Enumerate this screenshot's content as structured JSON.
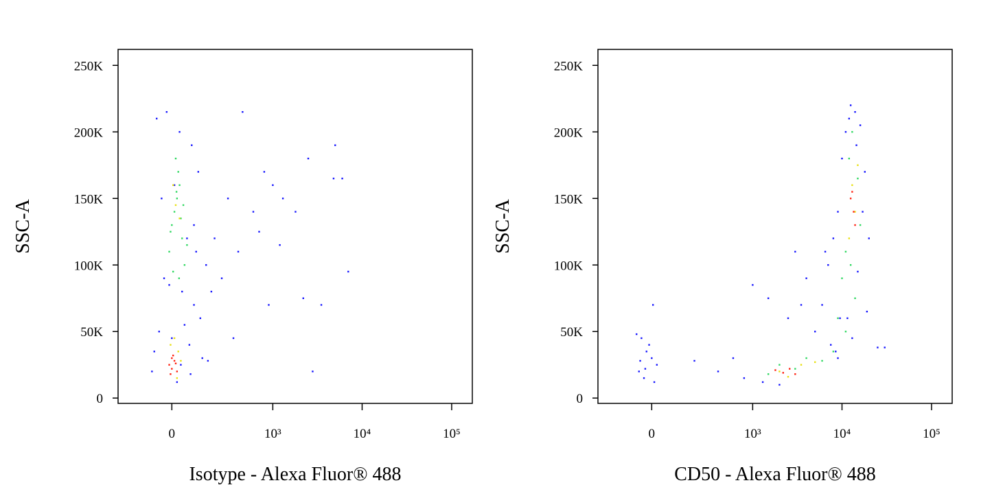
{
  "chart_data": [
    {
      "type": "scatter",
      "xscale": "biexponential",
      "xlabel": "Isotype - Alexa Fluor® 488",
      "ylabel": "SSC-A",
      "xlim": [
        -280,
        170000
      ],
      "ylim": [
        -4000,
        262000
      ],
      "xticks": [
        0,
        {
          "value": 1000,
          "label": "10³"
        },
        {
          "value": 10000,
          "label": "10⁴"
        },
        {
          "value": 100000,
          "label": "10⁵"
        }
      ],
      "yticks": [
        0,
        {
          "value": 50000,
          "label": "50K"
        },
        {
          "value": 100000,
          "label": "100K"
        },
        {
          "value": 150000,
          "label": "150K"
        },
        {
          "value": 200000,
          "label": "200K"
        },
        {
          "value": 250000,
          "label": "250K"
        }
      ],
      "series": [
        {
          "color": "#1414ff",
          "x": [
            -60,
            -20,
            30,
            80,
            110,
            -40,
            10,
            60,
            100,
            -30,
            40,
            90,
            120,
            -50,
            0,
            70,
            150,
            200,
            300,
            450,
            600,
            800,
            1000,
            1300,
            1800,
            2500,
            3500,
            5000,
            7000,
            -80,
            20,
            130,
            50,
            -10,
            90,
            180,
            250,
            400,
            700,
            1200,
            2200,
            4800,
            -70,
            35,
            75,
            160,
            350,
            900,
            2800,
            6000
          ],
          "y": [
            210000,
            215000,
            200000,
            190000,
            170000,
            150000,
            160000,
            120000,
            110000,
            90000,
            80000,
            70000,
            60000,
            50000,
            45000,
            40000,
            100000,
            120000,
            150000,
            215000,
            140000,
            170000,
            160000,
            150000,
            140000,
            180000,
            70000,
            190000,
            95000,
            20000,
            12000,
            30000,
            55000,
            85000,
            130000,
            80000,
            90000,
            110000,
            125000,
            115000,
            75000,
            165000,
            35000,
            25000,
            18000,
            28000,
            45000,
            70000,
            20000,
            165000
          ]
        },
        {
          "color": "#2ed860",
          "x": [
            0,
            20,
            40,
            -10,
            30,
            10,
            50,
            25,
            5,
            35,
            15,
            45,
            -5,
            28,
            18,
            60
          ],
          "y": [
            130000,
            150000,
            120000,
            110000,
            160000,
            140000,
            100000,
            170000,
            95000,
            135000,
            180000,
            145000,
            125000,
            90000,
            155000,
            115000
          ]
        },
        {
          "color": "#e8e010",
          "x": [
            15,
            30,
            5,
            -5,
            25,
            20,
            10,
            35
          ],
          "y": [
            145000,
            135000,
            160000,
            40000,
            35000,
            15000,
            45000,
            28000
          ]
        },
        {
          "color": "#ff2010",
          "x": [
            0,
            10,
            -10,
            20,
            5,
            -5,
            15,
            0
          ],
          "y": [
            22000,
            28000,
            25000,
            20000,
            32000,
            18000,
            26000,
            30000
          ]
        }
      ]
    },
    {
      "type": "scatter",
      "xscale": "biexponential",
      "xlabel": "CD50 - Alexa Fluor® 488",
      "ylabel": "SSC-A",
      "xlim": [
        -280,
        170000
      ],
      "ylim": [
        -4000,
        262000
      ],
      "xticks": [
        0,
        {
          "value": 1000,
          "label": "10³"
        },
        {
          "value": 10000,
          "label": "10⁴"
        },
        {
          "value": 100000,
          "label": "10⁵"
        }
      ],
      "yticks": [
        0,
        {
          "value": 50000,
          "label": "50K"
        },
        {
          "value": 100000,
          "label": "100K"
        },
        {
          "value": 150000,
          "label": "150K"
        },
        {
          "value": 200000,
          "label": "200K"
        },
        {
          "value": 250000,
          "label": "250K"
        }
      ],
      "series": [
        {
          "color": "#1414ff",
          "x": [
            -60,
            -40,
            -20,
            0,
            20,
            -50,
            -30,
            -10,
            10,
            -45,
            5,
            -25,
            200,
            400,
            600,
            800,
            1000,
            1500,
            1300,
            2500,
            3000,
            4000,
            5000,
            6000,
            7000,
            8000,
            9000,
            9500,
            10000,
            11000,
            12000,
            14000,
            16000,
            18000,
            20000,
            25000,
            7500,
            8500,
            6500,
            9000,
            13000,
            15000,
            17000,
            12500,
            11500,
            19000,
            2000,
            3500,
            30000,
            14500
          ],
          "y": [
            48000,
            45000,
            35000,
            30000,
            25000,
            20000,
            15000,
            40000,
            12000,
            28000,
            70000,
            22000,
            28000,
            20000,
            30000,
            15000,
            85000,
            75000,
            12000,
            60000,
            110000,
            90000,
            50000,
            70000,
            100000,
            120000,
            140000,
            60000,
            180000,
            200000,
            210000,
            215000,
            205000,
            170000,
            120000,
            38000,
            40000,
            35000,
            110000,
            30000,
            45000,
            95000,
            140000,
            220000,
            60000,
            65000,
            10000,
            70000,
            38000,
            190000
          ]
        },
        {
          "color": "#2ed860",
          "x": [
            1500,
            2000,
            3000,
            4000,
            6000,
            8000,
            9000,
            10000,
            11000,
            12000,
            13000,
            14000,
            15000,
            11000,
            16000,
            12500
          ],
          "y": [
            18000,
            25000,
            22000,
            30000,
            28000,
            35000,
            60000,
            90000,
            110000,
            180000,
            200000,
            75000,
            165000,
            50000,
            130000,
            100000
          ]
        },
        {
          "color": "#e8e010",
          "x": [
            2000,
            2500,
            3500,
            5000,
            12000,
            13000,
            14000,
            15000
          ],
          "y": [
            20000,
            16000,
            25000,
            27000,
            120000,
            160000,
            140000,
            175000
          ]
        },
        {
          "color": "#ff2010",
          "x": [
            2200,
            2600,
            3000,
            1800,
            12500,
            13500,
            14000,
            13000
          ],
          "y": [
            19000,
            22000,
            18000,
            21000,
            150000,
            140000,
            130000,
            155000
          ]
        }
      ]
    }
  ]
}
